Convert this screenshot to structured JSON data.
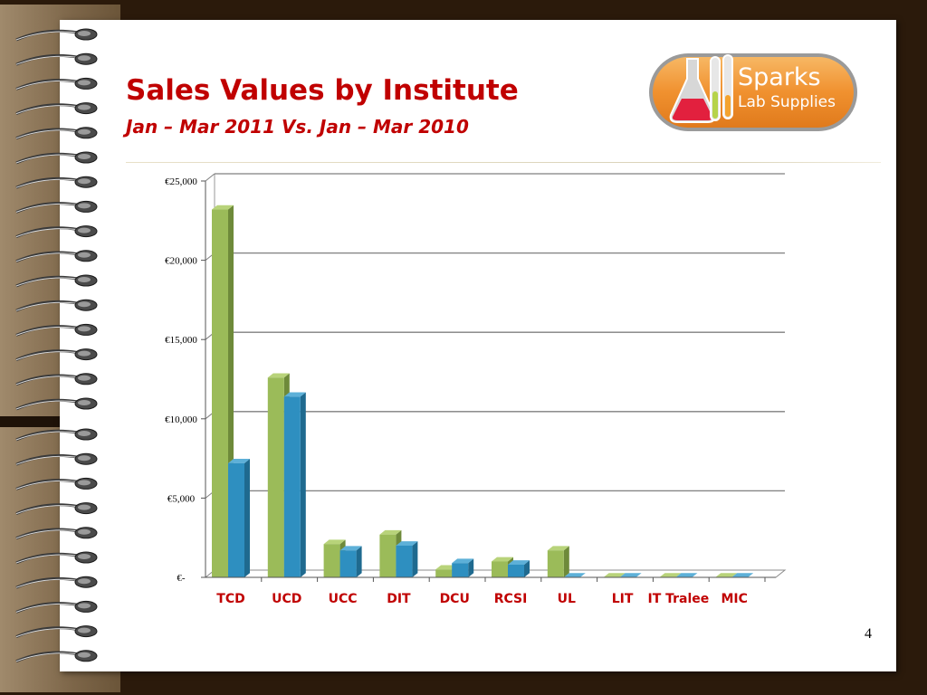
{
  "slide": {
    "title": "Sales Values by Institute",
    "subtitle": "Jan – Mar 2011 Vs. Jan – Mar 2010",
    "page_number": "4"
  },
  "logo": {
    "line1": "Sparks",
    "line2": "Lab Supplies",
    "colors": {
      "orange": "#f29a3a",
      "dark_orange": "#c4621a",
      "border": "#8c8c8c"
    }
  },
  "colors": {
    "title": "#c00000",
    "category_label": "#c00000",
    "series1": "#9bbb59",
    "series2": "#2e8fc0",
    "gridline": "#7f7f7f"
  },
  "chart_data": {
    "type": "bar",
    "categories": [
      "TCD",
      "UCD",
      "UCC",
      "DIT",
      "DCU",
      "RCSI",
      "UL",
      "LIT",
      "IT Tralee",
      "MIC"
    ],
    "series": [
      {
        "values": [
          23200,
          12600,
          2100,
          2700,
          500,
          1000,
          1700,
          0,
          0,
          0
        ]
      },
      {
        "values": [
          7200,
          11400,
          1700,
          2000,
          900,
          800,
          0,
          0,
          0,
          0
        ]
      }
    ],
    "y_ticks": [
      "€-",
      "€5,000",
      "€10,000",
      "€15,000",
      "€20,000",
      "€25,000"
    ],
    "ylim": [
      0,
      25000
    ],
    "grid": true,
    "three_d": true
  }
}
